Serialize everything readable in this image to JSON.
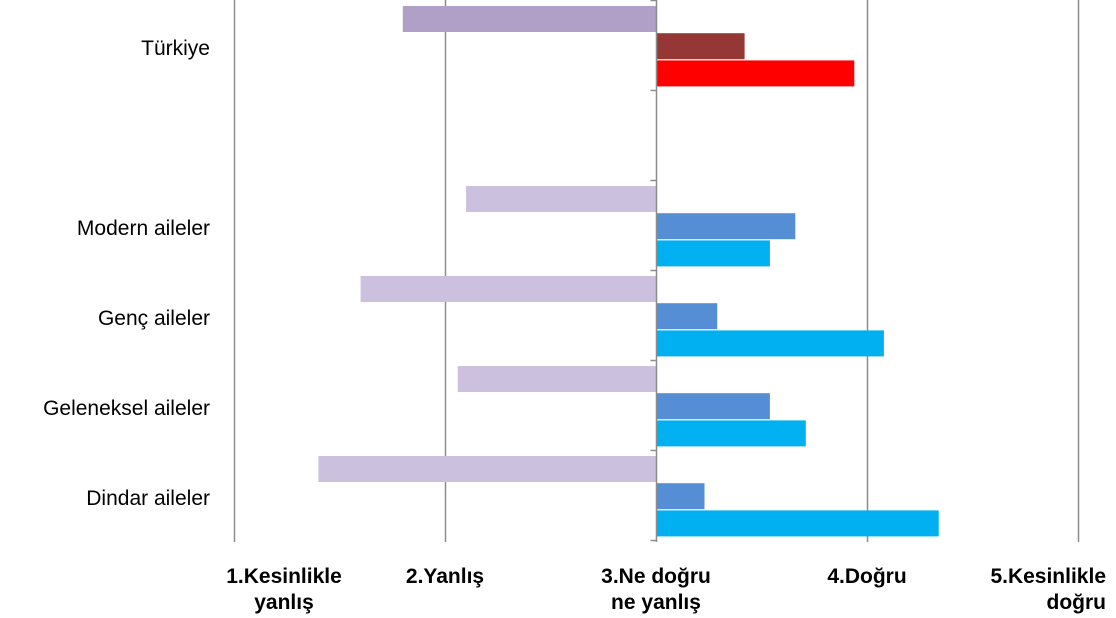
{
  "chart_data": {
    "type": "bar",
    "orientation": "horizontal",
    "xlim": [
      1,
      5
    ],
    "grid": true,
    "legend": "none",
    "x_ticks": [
      {
        "value": 1,
        "lines": [
          "1.Kesinlikle",
          "yanlış"
        ]
      },
      {
        "value": 2,
        "lines": [
          "2.Yanlış"
        ]
      },
      {
        "value": 3,
        "lines": [
          "3.Ne doğru",
          "ne yanlış"
        ]
      },
      {
        "value": 4,
        "lines": [
          "4.Doğru"
        ]
      },
      {
        "value": 5,
        "lines": [
          "5.Kesinlikle",
          "doğru"
        ]
      }
    ],
    "categories": [
      "Türkiye",
      "Modern aileler",
      "Genç aileler",
      "Geleneksel aileler",
      "Dindar aileler"
    ],
    "series": [
      {
        "colors": [
          "#b09fc7",
          "#cbc0dd",
          "#cbc0dd",
          "#cbc0dd",
          "#cbc0dd"
        ],
        "values": [
          1.8,
          2.1,
          1.6,
          2.06,
          1.4
        ]
      },
      {
        "colors": [
          "#953735",
          "#558ed5",
          "#558ed5",
          "#558ed5",
          "#558ed5"
        ],
        "values": [
          3.42,
          3.66,
          3.29,
          3.54,
          3.23
        ]
      },
      {
        "colors": [
          "#ff0000",
          "#00b0f0",
          "#00b0f0",
          "#00b0f0",
          "#00b0f0"
        ],
        "values": [
          3.94,
          3.54,
          4.08,
          3.71,
          4.34
        ]
      }
    ]
  }
}
